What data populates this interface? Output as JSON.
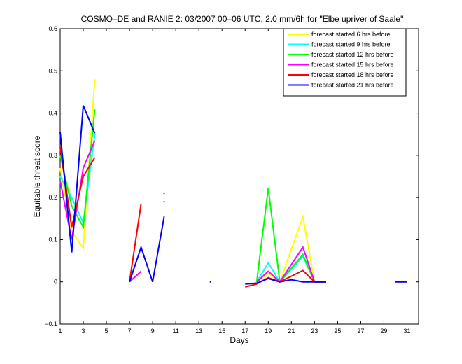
{
  "chart_data": {
    "type": "line",
    "title": "COSMO–DE and RANIE 2: 03/2007 00–06 UTC, 2.0 mm/6h for \"Elbe upriver of Saale\"",
    "xlabel": "Days",
    "ylabel": "Equitable threat score",
    "xlim": [
      1,
      32
    ],
    "ylim": [
      -0.1,
      0.6
    ],
    "xticks": [
      1,
      3,
      5,
      7,
      9,
      11,
      13,
      15,
      17,
      19,
      21,
      23,
      25,
      27,
      29,
      31
    ],
    "yticks": [
      -0.1,
      0,
      0.1,
      0.2,
      0.3,
      0.4,
      0.5,
      0.6
    ],
    "xtick_labels": [
      "1",
      "3",
      "5",
      "7",
      "9",
      "11",
      "13",
      "15",
      "17",
      "19",
      "21",
      "23",
      "25",
      "27",
      "29",
      "31"
    ],
    "ytick_labels": [
      "−0.1",
      "0",
      "0.1",
      "0.2",
      "0.3",
      "0.4",
      "0.5",
      "0.6"
    ],
    "grid": false,
    "legend_position": "top-right",
    "series": [
      {
        "name": "forecast started 6 hrs before",
        "color": "#ffff00",
        "segments": [
          [
            [
              1,
              0.27
            ],
            [
              2,
              0.12
            ],
            [
              3,
              0.08
            ],
            [
              4,
              0.48
            ]
          ],
          [
            [
              8,
              0.18
            ]
          ],
          [
            [
              10,
              0.21
            ]
          ],
          [
            [
              18,
              0.0
            ],
            [
              19,
              0.02
            ],
            [
              20,
              0.0
            ],
            [
              22,
              0.155
            ],
            [
              23,
              0.0
            ],
            [
              24,
              0.0
            ]
          ],
          [
            [
              30,
              0.0
            ],
            [
              31,
              0.0
            ]
          ]
        ]
      },
      {
        "name": "forecast started 9 hrs before",
        "color": "#00ffff",
        "segments": [
          [
            [
              1,
              0.25
            ],
            [
              2,
              0.2
            ],
            [
              3,
              0.14
            ],
            [
              4,
              0.35
            ]
          ],
          [
            [
              18,
              0.0
            ],
            [
              19,
              0.045
            ],
            [
              20,
              0.0
            ],
            [
              22,
              0.06
            ],
            [
              23,
              0.0
            ],
            [
              24,
              0.0
            ]
          ]
        ]
      },
      {
        "name": "forecast started 12 hrs before",
        "color": "#00ff00",
        "segments": [
          [
            [
              1,
              0.3
            ],
            [
              2,
              0.18
            ],
            [
              3,
              0.13
            ],
            [
              4,
              0.41
            ]
          ],
          [
            [
              18,
              0.0
            ],
            [
              19,
              0.222
            ],
            [
              20,
              0.0
            ],
            [
              22,
              0.065
            ],
            [
              23,
              0.0
            ],
            [
              24,
              0.0
            ]
          ]
        ]
      },
      {
        "name": "forecast started 15 hrs before",
        "color": "#ff00ff",
        "segments": [
          [
            [
              1,
              0.24
            ],
            [
              2,
              0.1
            ],
            [
              3,
              0.27
            ],
            [
              4,
              0.335
            ]
          ],
          [
            [
              7,
              0.0
            ],
            [
              8,
              0.025
            ]
          ],
          [
            [
              10,
              0.19
            ]
          ],
          [
            [
              18,
              0.0
            ],
            [
              19,
              0.025
            ],
            [
              20,
              0.0
            ],
            [
              22,
              0.082
            ],
            [
              23,
              0.0
            ],
            [
              24,
              0.0
            ]
          ]
        ]
      },
      {
        "name": "forecast started 18 hrs before",
        "color": "#ff0000",
        "segments": [
          [
            [
              1,
              0.32
            ],
            [
              2,
              0.13
            ],
            [
              3,
              0.25
            ],
            [
              4,
              0.295
            ]
          ],
          [
            [
              7,
              0.0
            ],
            [
              8,
              0.185
            ]
          ],
          [
            [
              10,
              0.21
            ]
          ],
          [
            [
              17,
              -0.012
            ],
            [
              18,
              -0.005
            ],
            [
              19,
              0.01
            ],
            [
              20,
              0.0
            ],
            [
              22,
              0.027
            ],
            [
              23,
              0.0
            ],
            [
              24,
              0.0
            ]
          ]
        ]
      },
      {
        "name": "forecast started 21 hrs before",
        "color": "#0000ff",
        "segments": [
          [
            [
              1,
              0.355
            ],
            [
              2,
              0.07
            ],
            [
              3,
              0.418
            ],
            [
              4,
              0.352
            ]
          ],
          [
            [
              7,
              0.0
            ],
            [
              8,
              0.082
            ],
            [
              9,
              0.0
            ],
            [
              10,
              0.155
            ]
          ],
          [
            [
              14,
              0.0
            ]
          ],
          [
            [
              17,
              -0.005
            ],
            [
              18,
              -0.003
            ],
            [
              19,
              0.008
            ],
            [
              20,
              0.0
            ],
            [
              21,
              0.005
            ],
            [
              22,
              0.0
            ],
            [
              23,
              0.0
            ],
            [
              24,
              0.0
            ]
          ],
          [
            [
              30,
              0.0
            ],
            [
              31,
              0.0
            ]
          ]
        ]
      }
    ]
  }
}
